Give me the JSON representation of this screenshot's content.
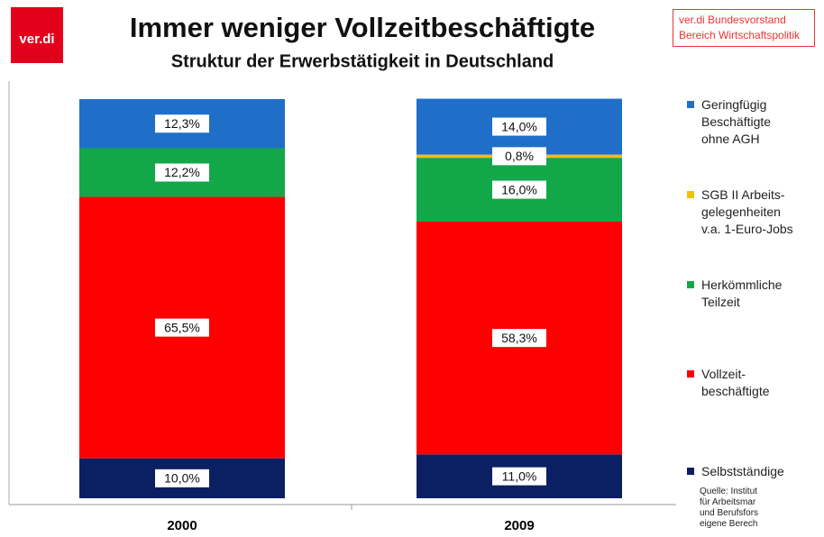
{
  "chart_data": {
    "type": "stacked_bar",
    "title": "Immer weniger Vollzeitbeschäftigte",
    "subtitle": "Struktur der Erwerbstätigkeit in Deutschland",
    "logo": "ver.di",
    "publisher": "ver.di Bundesvorstand\nBereich Wirtschaftspolitik",
    "source": "Quelle: Institut\nfür Arbeitsmar\nund Berufsfors\neigene Berech",
    "categories": [
      "2000",
      "2009"
    ],
    "ylim": [
      0,
      100
    ],
    "series": [
      {
        "name": "Selbstständige",
        "color": "#0b1f63",
        "values": [
          10.0,
          11.0
        ],
        "value_labels": [
          "10,0%",
          "11,0%"
        ]
      },
      {
        "name": "Vollzeit-\nbeschäftigte",
        "color": "#ff0000",
        "values": [
          65.5,
          58.3
        ],
        "value_labels": [
          "65,5%",
          "58,3%"
        ]
      },
      {
        "name": "Herkömmliche\nTeilzeit",
        "color": "#12a84a",
        "values": [
          12.2,
          16.0
        ],
        "value_labels": [
          "12,2%",
          "16,0%"
        ]
      },
      {
        "name": "SGB II Arbeits-\ngelegenheiten\nv.a. 1-Euro-Jobs",
        "color": "#f2c200",
        "values": [
          null,
          0.8
        ],
        "value_labels": [
          null,
          "0,8%"
        ]
      },
      {
        "name": "Geringfügig\nBeschäftigte\nohne AGH",
        "color": "#1f6fc8",
        "values": [
          12.3,
          14.0
        ],
        "value_labels": [
          "12,3%",
          "14,0%"
        ]
      }
    ]
  }
}
